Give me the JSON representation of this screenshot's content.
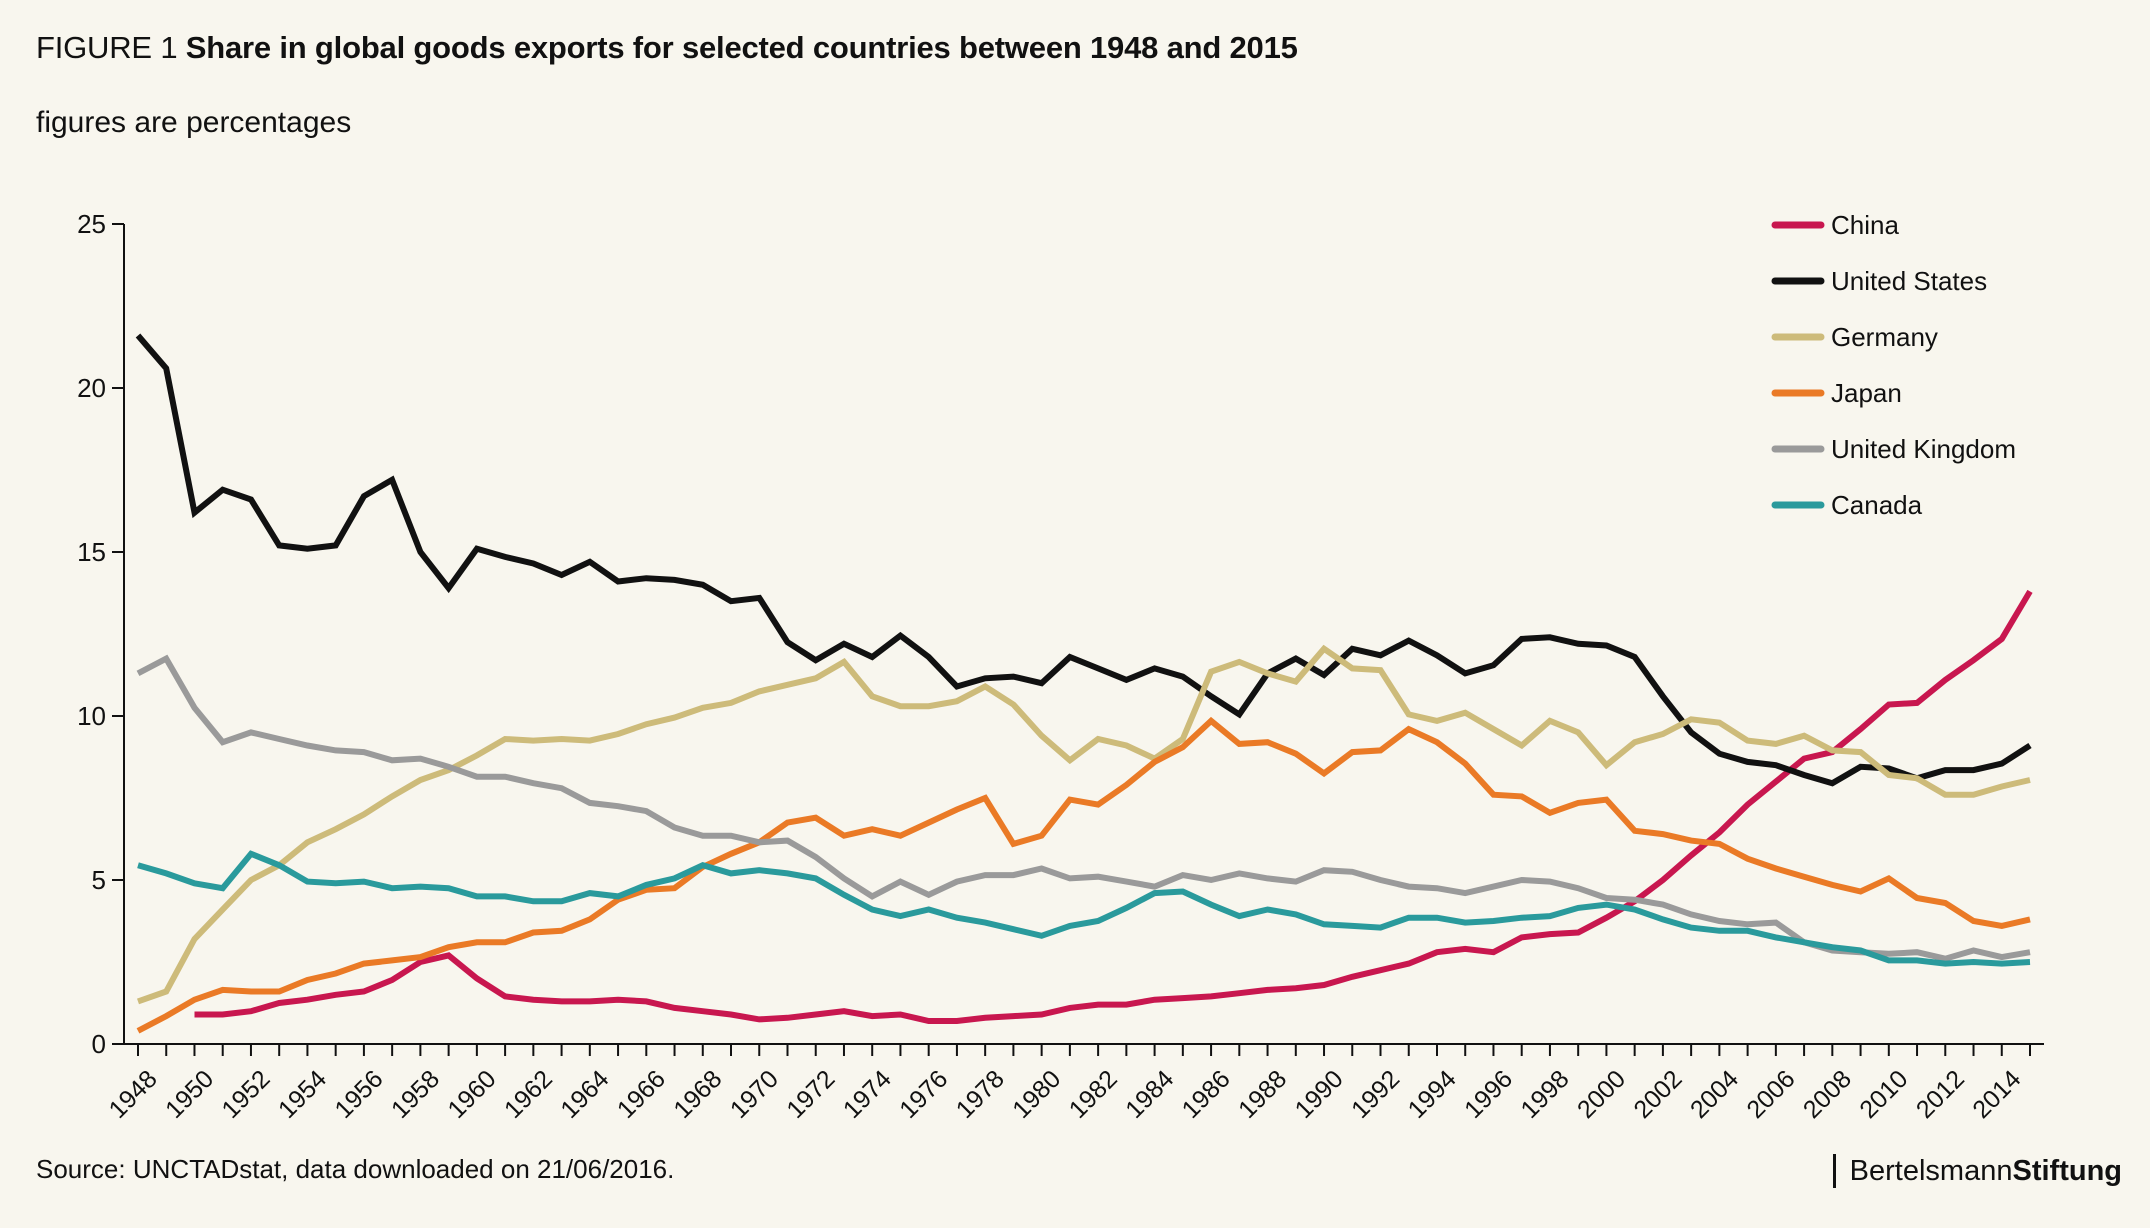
{
  "header": {
    "figure_label": "FIGURE 1",
    "title": "Share in global goods exports for selected countries between 1948 and 2015",
    "subtitle": "figures are percentages"
  },
  "footer": {
    "source": "Source: UNCTADstat, data downloaded on 21/06/2016.",
    "brand_part1": "Bertelsmann",
    "brand_part2": "Stiftung"
  },
  "chart_data": {
    "type": "line",
    "title": "Share in global goods exports for selected countries between 1948 and 2015",
    "xlabel": "",
    "ylabel": "figures are percentages",
    "ylim": [
      0,
      25
    ],
    "xlim": [
      1948,
      2015
    ],
    "yticks": [
      "0",
      "5",
      "10",
      "15",
      "20",
      "25"
    ],
    "xticks": [
      "1948",
      "1950",
      "1952",
      "1954",
      "1956",
      "1958",
      "1960",
      "1962",
      "1964",
      "1966",
      "1968",
      "1970",
      "1972",
      "1974",
      "1976",
      "1978",
      "1980",
      "1982",
      "1984",
      "1986",
      "1988",
      "1990",
      "1992",
      "1994",
      "1996",
      "1998",
      "2000",
      "2002",
      "2004",
      "2006",
      "2008",
      "2010",
      "2012",
      "2014"
    ],
    "legend_position": "top-right",
    "grid": false,
    "series": [
      {
        "name": "China",
        "color": "#c8174f",
        "start_year": 1950,
        "values": [
          0.9,
          0.9,
          1.0,
          1.25,
          1.35,
          1.5,
          1.6,
          1.95,
          2.5,
          2.7,
          2.0,
          1.45,
          1.35,
          1.3,
          1.3,
          1.35,
          1.3,
          1.1,
          1.0,
          0.9,
          0.75,
          0.8,
          0.9,
          1.0,
          0.85,
          0.9,
          0.7,
          0.7,
          0.8,
          0.85,
          0.9,
          1.1,
          1.2,
          1.2,
          1.35,
          1.4,
          1.45,
          1.55,
          1.65,
          1.7,
          1.8,
          2.05,
          2.25,
          2.45,
          2.8,
          2.9,
          2.8,
          3.25,
          3.35,
          3.4,
          3.85,
          4.35,
          5.0,
          5.75,
          6.45,
          7.3,
          8.0,
          8.7,
          8.9,
          9.6,
          10.35,
          10.4,
          11.1,
          11.7,
          12.35,
          13.8
        ]
      },
      {
        "name": "United States",
        "color": "#111111",
        "start_year": 1948,
        "values": [
          21.6,
          20.6,
          16.2,
          16.9,
          16.6,
          15.2,
          15.1,
          15.2,
          16.7,
          17.2,
          15.0,
          13.9,
          15.1,
          14.85,
          14.65,
          14.3,
          14.7,
          14.1,
          14.2,
          14.15,
          14.0,
          13.5,
          13.6,
          12.25,
          11.7,
          12.2,
          11.8,
          12.45,
          11.8,
          10.9,
          11.15,
          11.2,
          11.0,
          11.8,
          11.45,
          11.1,
          11.45,
          11.2,
          10.6,
          10.05,
          11.3,
          11.75,
          11.25,
          12.05,
          11.85,
          12.3,
          11.85,
          11.3,
          11.55,
          12.35,
          12.4,
          12.2,
          12.15,
          11.8,
          10.6,
          9.5,
          8.85,
          8.6,
          8.5,
          8.2,
          7.95,
          8.45,
          8.4,
          8.1,
          8.35,
          8.35,
          8.55,
          9.1
        ]
      },
      {
        "name": "Germany",
        "color": "#cdbb7a",
        "start_year": 1948,
        "values": [
          1.3,
          1.6,
          3.2,
          4.1,
          5.0,
          5.45,
          6.15,
          6.55,
          7.0,
          7.55,
          8.05,
          8.35,
          8.8,
          9.3,
          9.25,
          9.3,
          9.25,
          9.45,
          9.75,
          9.95,
          10.25,
          10.4,
          10.75,
          10.95,
          11.15,
          11.65,
          10.6,
          10.3,
          10.3,
          10.45,
          10.9,
          10.35,
          9.4,
          8.65,
          9.3,
          9.1,
          8.7,
          9.3,
          11.35,
          11.65,
          11.3,
          11.05,
          12.05,
          11.45,
          11.4,
          10.05,
          9.85,
          10.1,
          9.6,
          9.1,
          9.85,
          9.5,
          8.5,
          9.2,
          9.45,
          9.9,
          9.8,
          9.25,
          9.15,
          9.4,
          8.95,
          8.9,
          8.2,
          8.1,
          7.6,
          7.6,
          7.85,
          8.05
        ]
      },
      {
        "name": "Japan",
        "color": "#ea7a26",
        "start_year": 1948,
        "values": [
          0.4,
          0.85,
          1.35,
          1.65,
          1.6,
          1.6,
          1.95,
          2.15,
          2.45,
          2.55,
          2.65,
          2.95,
          3.1,
          3.1,
          3.4,
          3.45,
          3.8,
          4.4,
          4.7,
          4.75,
          5.4,
          5.8,
          6.15,
          6.75,
          6.9,
          6.35,
          6.55,
          6.35,
          6.75,
          7.15,
          7.5,
          6.1,
          6.35,
          7.45,
          7.3,
          7.9,
          8.6,
          9.05,
          9.85,
          9.15,
          9.2,
          8.85,
          8.25,
          8.9,
          8.95,
          9.6,
          9.2,
          8.55,
          7.6,
          7.55,
          7.05,
          7.35,
          7.45,
          6.5,
          6.4,
          6.2,
          6.1,
          5.65,
          5.35,
          5.1,
          4.85,
          4.65,
          5.05,
          4.45,
          4.3,
          3.75,
          3.6,
          3.8
        ]
      },
      {
        "name": "United Kingdom",
        "color": "#9a9a9a",
        "start_year": 1948,
        "values": [
          11.3,
          11.75,
          10.25,
          9.2,
          9.5,
          9.3,
          9.1,
          8.95,
          8.9,
          8.65,
          8.7,
          8.45,
          8.15,
          8.15,
          7.95,
          7.8,
          7.35,
          7.25,
          7.1,
          6.6,
          6.35,
          6.35,
          6.15,
          6.2,
          5.7,
          5.05,
          4.5,
          4.95,
          4.55,
          4.95,
          5.15,
          5.15,
          5.35,
          5.05,
          5.1,
          4.95,
          4.8,
          5.15,
          5.0,
          5.2,
          5.05,
          4.95,
          5.3,
          5.25,
          5.0,
          4.8,
          4.75,
          4.6,
          4.8,
          5.0,
          4.95,
          4.75,
          4.45,
          4.4,
          4.25,
          3.95,
          3.75,
          3.65,
          3.7,
          3.1,
          2.85,
          2.8,
          2.75,
          2.8,
          2.6,
          2.85,
          2.65,
          2.8
        ]
      },
      {
        "name": "Canada",
        "color": "#2a9a9c",
        "start_year": 1948,
        "values": [
          5.45,
          5.2,
          4.9,
          4.75,
          5.8,
          5.45,
          4.95,
          4.9,
          4.95,
          4.75,
          4.8,
          4.75,
          4.5,
          4.5,
          4.35,
          4.35,
          4.6,
          4.5,
          4.85,
          5.05,
          5.45,
          5.2,
          5.3,
          5.2,
          5.05,
          4.55,
          4.1,
          3.9,
          4.1,
          3.85,
          3.7,
          3.5,
          3.3,
          3.6,
          3.75,
          4.15,
          4.6,
          4.65,
          4.25,
          3.9,
          4.1,
          3.95,
          3.65,
          3.6,
          3.55,
          3.85,
          3.85,
          3.7,
          3.75,
          3.85,
          3.9,
          4.15,
          4.25,
          4.1,
          3.8,
          3.55,
          3.45,
          3.45,
          3.25,
          3.1,
          2.95,
          2.85,
          2.55,
          2.55,
          2.45,
          2.5,
          2.45,
          2.5
        ]
      }
    ]
  }
}
